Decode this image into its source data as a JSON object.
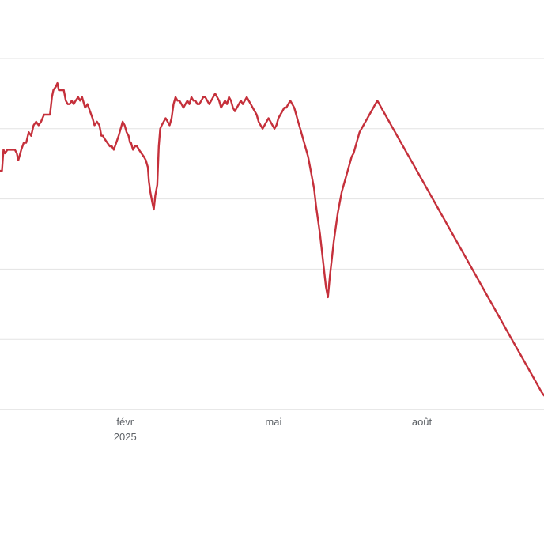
{
  "colors": {
    "series": "#c5303b",
    "grid": "#e3e3e3",
    "axis_text": "#5f6368"
  },
  "chart_data": {
    "type": "line",
    "title": "",
    "xlabel": "",
    "ylabel": "",
    "x_ticks": [
      {
        "label": "févr",
        "sublabel": "2025",
        "x": 1.0
      },
      {
        "label": "mai",
        "sublabel": "",
        "x": 4.0
      },
      {
        "label": "août",
        "sublabel": "",
        "x": 7.0
      }
    ],
    "x_range": [
      -1.53,
      9.47
    ],
    "y_range": [
      0,
      100
    ],
    "grid": {
      "horizontal_values": [
        20,
        40,
        60,
        80,
        100
      ],
      "show": true
    },
    "legend": "none",
    "series": [
      {
        "values": [
          [
            -1.53,
            68
          ],
          [
            -1.49,
            68
          ],
          [
            -1.46,
            74
          ],
          [
            -1.43,
            73
          ],
          [
            -1.38,
            74
          ],
          [
            -1.3,
            74
          ],
          [
            -1.23,
            74
          ],
          [
            -1.19,
            73
          ],
          [
            -1.16,
            71
          ],
          [
            -1.1,
            74
          ],
          [
            -1.05,
            76
          ],
          [
            -1.0,
            76
          ],
          [
            -0.95,
            79
          ],
          [
            -0.9,
            78
          ],
          [
            -0.85,
            81
          ],
          [
            -0.8,
            82
          ],
          [
            -0.75,
            81
          ],
          [
            -0.7,
            82
          ],
          [
            -0.64,
            84
          ],
          [
            -0.58,
            84
          ],
          [
            -0.52,
            84
          ],
          [
            -0.48,
            89
          ],
          [
            -0.45,
            91
          ],
          [
            -0.4,
            92
          ],
          [
            -0.37,
            93
          ],
          [
            -0.34,
            91
          ],
          [
            -0.29,
            91
          ],
          [
            -0.24,
            91
          ],
          [
            -0.2,
            88
          ],
          [
            -0.16,
            87
          ],
          [
            -0.12,
            87
          ],
          [
            -0.08,
            88
          ],
          [
            -0.04,
            87
          ],
          [
            0.0,
            88
          ],
          [
            0.05,
            89
          ],
          [
            0.09,
            88
          ],
          [
            0.13,
            89
          ],
          [
            0.19,
            86
          ],
          [
            0.24,
            87
          ],
          [
            0.29,
            85
          ],
          [
            0.34,
            83
          ],
          [
            0.38,
            81
          ],
          [
            0.43,
            82
          ],
          [
            0.48,
            81
          ],
          [
            0.52,
            78
          ],
          [
            0.55,
            78
          ],
          [
            0.59,
            77
          ],
          [
            0.64,
            76
          ],
          [
            0.69,
            75
          ],
          [
            0.73,
            75
          ],
          [
            0.77,
            74
          ],
          [
            0.82,
            76
          ],
          [
            0.87,
            78
          ],
          [
            0.91,
            80
          ],
          [
            0.95,
            82
          ],
          [
            0.99,
            81
          ],
          [
            1.03,
            79
          ],
          [
            1.07,
            78
          ],
          [
            1.1,
            76
          ],
          [
            1.12,
            76
          ],
          [
            1.16,
            74
          ],
          [
            1.2,
            75
          ],
          [
            1.24,
            75
          ],
          [
            1.28,
            74
          ],
          [
            1.33,
            73
          ],
          [
            1.38,
            72
          ],
          [
            1.42,
            71
          ],
          [
            1.46,
            69
          ],
          [
            1.48,
            65
          ],
          [
            1.51,
            62
          ],
          [
            1.55,
            59
          ],
          [
            1.58,
            57
          ],
          [
            1.61,
            61
          ],
          [
            1.65,
            64
          ],
          [
            1.68,
            75
          ],
          [
            1.71,
            80
          ],
          [
            1.74,
            81
          ],
          [
            1.78,
            82
          ],
          [
            1.82,
            83
          ],
          [
            1.86,
            82
          ],
          [
            1.9,
            81
          ],
          [
            1.94,
            83
          ],
          [
            1.98,
            87
          ],
          [
            2.02,
            89
          ],
          [
            2.06,
            88
          ],
          [
            2.1,
            88
          ],
          [
            2.14,
            87
          ],
          [
            2.18,
            86
          ],
          [
            2.22,
            87
          ],
          [
            2.26,
            88
          ],
          [
            2.3,
            87
          ],
          [
            2.34,
            89
          ],
          [
            2.38,
            88
          ],
          [
            2.42,
            88
          ],
          [
            2.46,
            87
          ],
          [
            2.5,
            87
          ],
          [
            2.54,
            88
          ],
          [
            2.58,
            89
          ],
          [
            2.62,
            89
          ],
          [
            2.66,
            88
          ],
          [
            2.7,
            87
          ],
          [
            2.74,
            88
          ],
          [
            2.78,
            89
          ],
          [
            2.82,
            90
          ],
          [
            2.86,
            89
          ],
          [
            2.9,
            88
          ],
          [
            2.94,
            86
          ],
          [
            2.98,
            87
          ],
          [
            3.02,
            88
          ],
          [
            3.06,
            87
          ],
          [
            3.1,
            89
          ],
          [
            3.14,
            88
          ],
          [
            3.18,
            86
          ],
          [
            3.22,
            85
          ],
          [
            3.26,
            86
          ],
          [
            3.3,
            87
          ],
          [
            3.34,
            88
          ],
          [
            3.38,
            87
          ],
          [
            3.42,
            88
          ],
          [
            3.46,
            89
          ],
          [
            3.5,
            88
          ],
          [
            3.54,
            87
          ],
          [
            3.58,
            86
          ],
          [
            3.62,
            85
          ],
          [
            3.66,
            84
          ],
          [
            3.7,
            82
          ],
          [
            3.74,
            81
          ],
          [
            3.78,
            80
          ],
          [
            3.82,
            81
          ],
          [
            3.86,
            82
          ],
          [
            3.9,
            83
          ],
          [
            3.94,
            82
          ],
          [
            3.98,
            81
          ],
          [
            4.02,
            80
          ],
          [
            4.06,
            81
          ],
          [
            4.1,
            83
          ],
          [
            4.14,
            84
          ],
          [
            4.18,
            85
          ],
          [
            4.22,
            86
          ],
          [
            4.26,
            86
          ],
          [
            4.3,
            87
          ],
          [
            4.34,
            88
          ],
          [
            4.38,
            87
          ],
          [
            4.42,
            86
          ],
          [
            4.46,
            84
          ],
          [
            4.5,
            82
          ],
          [
            4.54,
            80
          ],
          [
            4.58,
            78
          ],
          [
            4.62,
            76
          ],
          [
            4.66,
            74
          ],
          [
            4.7,
            72
          ],
          [
            4.74,
            69
          ],
          [
            4.78,
            66
          ],
          [
            4.82,
            63
          ],
          [
            4.86,
            58
          ],
          [
            4.9,
            54
          ],
          [
            4.94,
            50
          ],
          [
            4.98,
            45
          ],
          [
            5.02,
            40
          ],
          [
            5.06,
            35
          ],
          [
            5.1,
            32
          ],
          [
            5.14,
            38
          ],
          [
            5.18,
            43
          ],
          [
            5.22,
            48
          ],
          [
            5.26,
            52
          ],
          [
            5.3,
            56
          ],
          [
            5.34,
            59
          ],
          [
            5.38,
            62
          ],
          [
            5.42,
            64
          ],
          [
            5.46,
            66
          ],
          [
            5.5,
            68
          ],
          [
            5.54,
            70
          ],
          [
            5.58,
            72
          ],
          [
            5.62,
            73
          ],
          [
            5.66,
            75
          ],
          [
            5.7,
            77
          ],
          [
            5.74,
            79
          ],
          [
            5.78,
            80
          ],
          [
            5.82,
            81
          ],
          [
            5.86,
            82
          ],
          [
            5.9,
            83
          ],
          [
            5.94,
            84
          ],
          [
            5.98,
            85
          ],
          [
            6.02,
            86
          ],
          [
            6.06,
            87
          ],
          [
            6.1,
            88
          ],
          [
            6.14,
            87
          ],
          [
            6.18,
            86
          ],
          [
            6.22,
            85
          ],
          [
            6.26,
            84
          ],
          [
            6.3,
            83
          ],
          [
            6.34,
            82
          ],
          [
            6.38,
            81
          ],
          [
            6.42,
            80
          ],
          [
            6.46,
            79
          ],
          [
            6.5,
            78
          ],
          [
            6.54,
            77
          ],
          [
            6.58,
            76
          ],
          [
            6.62,
            75
          ],
          [
            6.66,
            74
          ],
          [
            6.7,
            73
          ],
          [
            6.74,
            72
          ],
          [
            6.78,
            71
          ],
          [
            6.82,
            70
          ],
          [
            6.86,
            69
          ],
          [
            6.9,
            68
          ],
          [
            6.94,
            67
          ],
          [
            6.98,
            66
          ],
          [
            7.02,
            65
          ],
          [
            7.06,
            64
          ],
          [
            7.1,
            63
          ],
          [
            7.14,
            62
          ],
          [
            7.18,
            61
          ],
          [
            7.22,
            60
          ],
          [
            7.26,
            59
          ],
          [
            7.3,
            58
          ],
          [
            7.34,
            57
          ],
          [
            7.38,
            56
          ],
          [
            7.42,
            55
          ],
          [
            7.46,
            54
          ],
          [
            7.5,
            53
          ],
          [
            7.54,
            52
          ],
          [
            7.58,
            51
          ],
          [
            7.62,
            50
          ],
          [
            7.66,
            49
          ],
          [
            7.7,
            48
          ],
          [
            7.74,
            47
          ],
          [
            7.78,
            46
          ],
          [
            7.82,
            45
          ],
          [
            7.86,
            44
          ],
          [
            7.9,
            43
          ],
          [
            7.94,
            42
          ],
          [
            7.98,
            41
          ],
          [
            8.02,
            40
          ],
          [
            8.06,
            39
          ],
          [
            8.1,
            38
          ],
          [
            8.14,
            37
          ],
          [
            8.18,
            36
          ],
          [
            8.22,
            35
          ],
          [
            8.26,
            34
          ],
          [
            8.3,
            33
          ],
          [
            8.34,
            32
          ],
          [
            8.38,
            31
          ],
          [
            8.42,
            30
          ],
          [
            8.46,
            29
          ],
          [
            8.5,
            28
          ],
          [
            8.54,
            27
          ],
          [
            8.58,
            26
          ],
          [
            8.62,
            25
          ],
          [
            8.66,
            24
          ],
          [
            8.7,
            23
          ],
          [
            8.74,
            22
          ],
          [
            8.78,
            21
          ],
          [
            8.82,
            20
          ],
          [
            8.86,
            19
          ],
          [
            8.9,
            18
          ],
          [
            8.94,
            17
          ],
          [
            8.98,
            16
          ],
          [
            9.02,
            15
          ],
          [
            9.06,
            14
          ],
          [
            9.1,
            13
          ],
          [
            9.14,
            12
          ],
          [
            9.18,
            11
          ],
          [
            9.22,
            10
          ],
          [
            9.26,
            9
          ],
          [
            9.3,
            8
          ],
          [
            9.34,
            7
          ],
          [
            9.38,
            6
          ],
          [
            9.42,
            5
          ],
          [
            9.47,
            4
          ]
        ]
      }
    ]
  }
}
